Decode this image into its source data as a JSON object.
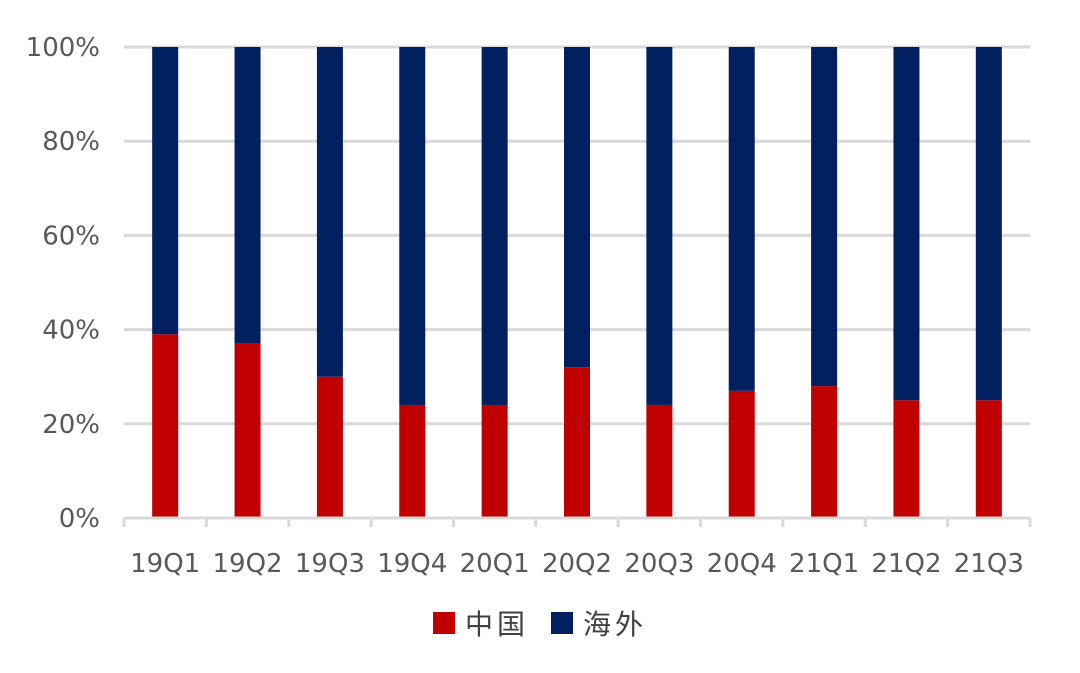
{
  "chart_data": {
    "type": "bar",
    "stacked": true,
    "categories": [
      "19Q1",
      "19Q2",
      "19Q3",
      "19Q4",
      "20Q1",
      "20Q2",
      "20Q3",
      "20Q4",
      "21Q1",
      "21Q2",
      "21Q3"
    ],
    "series": [
      {
        "name": "中国",
        "color": "#c00000",
        "values": [
          39,
          37,
          30,
          24,
          24,
          32,
          24,
          27,
          28,
          25,
          25
        ]
      },
      {
        "name": "海外",
        "color": "#002060",
        "values": [
          61,
          63,
          70,
          76,
          76,
          68,
          76,
          73,
          72,
          75,
          75
        ]
      }
    ],
    "yticks": [
      "0%",
      "20%",
      "40%",
      "60%",
      "80%",
      "100%"
    ],
    "ylim": [
      0,
      100
    ],
    "grid": true,
    "legend_position": "bottom"
  }
}
